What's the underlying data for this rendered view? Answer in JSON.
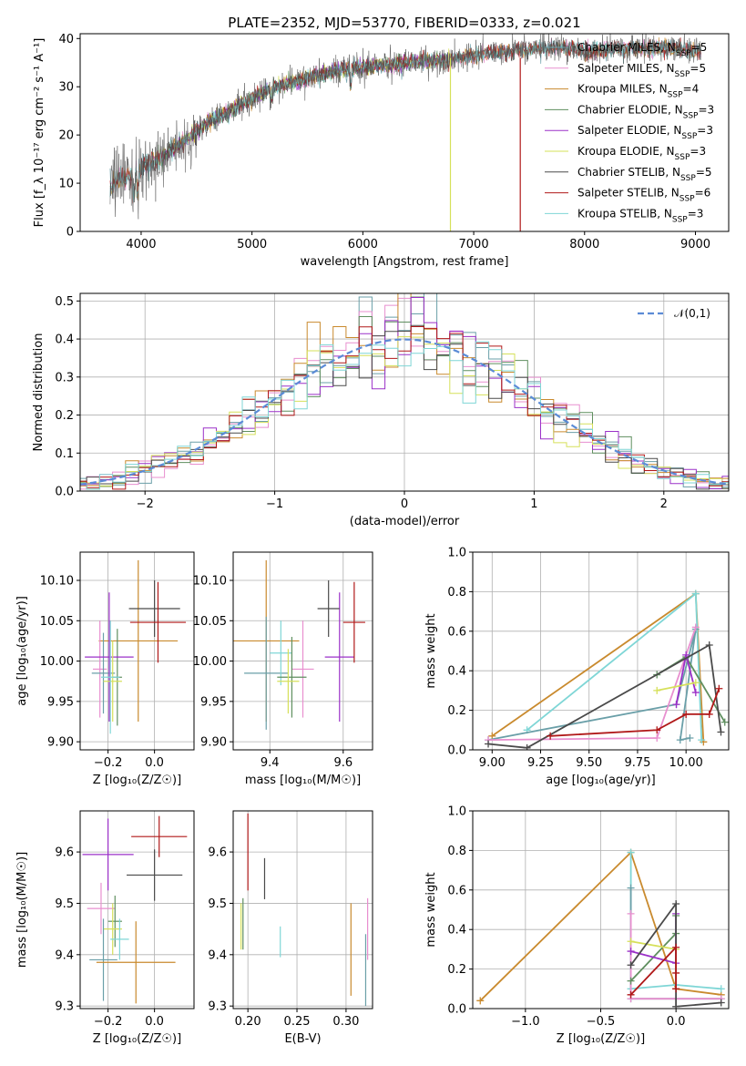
{
  "figure": {
    "title": "PLATE=2352, MJD=53770, FIBERID=0333, z=0.021"
  },
  "models": [
    {
      "name": "Chabrier MILES",
      "nssp": "5",
      "color": "#6a9fa8"
    },
    {
      "name": "Salpeter MILES",
      "nssp": "5",
      "color": "#e88fcf"
    },
    {
      "name": "Kroupa MILES",
      "nssp": "4",
      "color": "#c98a2e"
    },
    {
      "name": "Chabrier ELODIE",
      "nssp": "3",
      "color": "#5f8f5f"
    },
    {
      "name": "Salpeter ELODIE",
      "nssp": "3",
      "color": "#9b30c8"
    },
    {
      "name": "Kroupa ELODIE",
      "nssp": "3",
      "color": "#d6e05a"
    },
    {
      "name": "Chabrier STELIB",
      "nssp": "5",
      "color": "#4a4a4a"
    },
    {
      "name": "Salpeter STELIB",
      "nssp": "6",
      "color": "#b01818"
    },
    {
      "name": "Kroupa STELIB",
      "nssp": "3",
      "color": "#7fd6d6"
    }
  ],
  "chart_data": [
    {
      "id": "spectrum",
      "type": "line",
      "xlabel": "wavelength [Angstrom, rest frame]",
      "ylabel": "Flux [f_λ 10⁻¹⁷ erg cm⁻² s⁻¹ A⁻¹]",
      "xlim": [
        3450,
        9300
      ],
      "ylim": [
        0,
        41
      ],
      "xticks": [
        4000,
        5000,
        6000,
        7000,
        8000,
        9000
      ],
      "yticks": [
        0,
        10,
        20,
        30,
        40
      ],
      "continuum": [
        [
          3720,
          9
        ],
        [
          3800,
          11
        ],
        [
          3900,
          11.5
        ],
        [
          4000,
          13
        ],
        [
          4200,
          15.5
        ],
        [
          4400,
          19
        ],
        [
          4600,
          22.5
        ],
        [
          4800,
          25
        ],
        [
          5000,
          27.5
        ],
        [
          5200,
          30
        ],
        [
          5400,
          31
        ],
        [
          5600,
          32.5
        ],
        [
          5800,
          33.5
        ],
        [
          6000,
          34
        ],
        [
          6200,
          34.5
        ],
        [
          6400,
          35
        ],
        [
          6600,
          35.5
        ],
        [
          6800,
          35.5
        ],
        [
          7000,
          36.5
        ],
        [
          7200,
          37
        ],
        [
          7400,
          37.5
        ],
        [
          7600,
          38
        ],
        [
          7800,
          38
        ],
        [
          8000,
          37.5
        ],
        [
          8200,
          37.8
        ],
        [
          8400,
          38
        ],
        [
          8600,
          38
        ],
        [
          8800,
          38
        ],
        [
          9000,
          37.5
        ],
        [
          9050,
          37.5
        ]
      ],
      "dropouts": [
        {
          "x": 6790,
          "model": "Kroupa ELODIE"
        },
        {
          "x": 7420,
          "model": "Salpeter STELIB"
        }
      ],
      "legend": "upper-right",
      "grid": false
    },
    {
      "id": "residuals",
      "type": "bar",
      "xlabel": "(data-model)/error",
      "ylabel": "Normed distribution",
      "xlim": [
        -2.5,
        2.5
      ],
      "ylim": [
        0,
        0.52
      ],
      "xticks": [
        -2,
        -1,
        0,
        1,
        2
      ],
      "yticks": [
        0.0,
        0.1,
        0.2,
        0.3,
        0.4,
        0.5
      ],
      "normal_curve": {
        "label": "𝒩(0,1)",
        "mean": 0,
        "sigma": 1,
        "color": "#5b8bd6"
      },
      "bin_width": 0.1,
      "legend": "upper-right",
      "grid": true
    },
    {
      "id": "z_vs_age",
      "type": "scatter",
      "xlabel": "Z [log₁₀(Z/Z☉)]",
      "ylabel": "age  [log₁₀(age/yr)]",
      "xlim": [
        -0.32,
        0.17
      ],
      "ylim": [
        9.89,
        10.135
      ],
      "xticks": [
        -0.2,
        0.0
      ],
      "yticks": [
        9.9,
        9.95,
        10.0,
        10.05,
        10.1
      ],
      "points": [
        {
          "model": "Kroupa MILES",
          "x": -0.07,
          "xerr": 0.17,
          "y": 10.025,
          "yerr": 0.1
        },
        {
          "model": "Salpeter MILES",
          "x": -0.235,
          "xerr": 0.03,
          "y": 9.99,
          "yerr": 0.06
        },
        {
          "model": "Chabrier MILES",
          "x": -0.22,
          "xerr": 0.05,
          "y": 9.985,
          "yerr": 0.05
        },
        {
          "model": "Chabrier ELODIE",
          "x": -0.16,
          "xerr": 0.02,
          "y": 9.98,
          "yerr": 0.06
        },
        {
          "model": "Salpeter ELODIE",
          "x": -0.195,
          "xerr": 0.105,
          "y": 10.005,
          "yerr": 0.08
        },
        {
          "model": "Kroupa ELODIE",
          "x": -0.18,
          "xerr": 0.04,
          "y": 9.975,
          "yerr": 0.05
        },
        {
          "model": "Kroupa STELIB",
          "x": -0.19,
          "xerr": 0.04,
          "y": 9.98,
          "yerr": 0.07
        },
        {
          "model": "Chabrier STELIB",
          "x": 0.0,
          "xerr": 0.11,
          "y": 10.065,
          "yerr": 0.035
        },
        {
          "model": "Salpeter STELIB",
          "x": 0.015,
          "xerr": 0.12,
          "y": 10.048,
          "yerr": 0.05
        }
      ]
    },
    {
      "id": "mass_vs_age",
      "type": "scatter",
      "xlabel": "mass [log₁₀(M/M☉)]",
      "ylabel": "",
      "xlim": [
        9.3,
        9.68
      ],
      "ylim": [
        9.89,
        10.135
      ],
      "xticks": [
        9.4,
        9.6
      ],
      "yticks": [
        9.9,
        9.95,
        10.0,
        10.05,
        10.1
      ],
      "points": [
        {
          "model": "Kroupa MILES",
          "x": 9.39,
          "xerr": 0.09,
          "y": 10.025,
          "yerr": 0.1
        },
        {
          "model": "Chabrier MILES",
          "x": 9.39,
          "xerr": 0.06,
          "y": 9.985,
          "yerr": 0.07
        },
        {
          "model": "Salpeter MILES",
          "x": 9.49,
          "xerr": 0.03,
          "y": 9.99,
          "yerr": 0.06
        },
        {
          "model": "Kroupa STELIB",
          "x": 9.43,
          "xerr": 0.03,
          "y": 10.01,
          "yerr": 0.04
        },
        {
          "model": "Chabrier ELODIE",
          "x": 9.46,
          "xerr": 0.04,
          "y": 9.98,
          "yerr": 0.05
        },
        {
          "model": "Kroupa ELODIE",
          "x": 9.45,
          "xerr": 0.03,
          "y": 9.975,
          "yerr": 0.04
        },
        {
          "model": "Salpeter ELODIE",
          "x": 9.59,
          "xerr": 0.04,
          "y": 10.005,
          "yerr": 0.08
        },
        {
          "model": "Chabrier STELIB",
          "x": 9.56,
          "xerr": 0.03,
          "y": 10.065,
          "yerr": 0.035
        },
        {
          "model": "Salpeter STELIB",
          "x": 9.63,
          "xerr": 0.03,
          "y": 10.048,
          "yerr": 0.05
        }
      ]
    },
    {
      "id": "weight_vs_age",
      "type": "line",
      "xlabel": "age  [log₁₀(age/yr)]",
      "ylabel": "mass weight",
      "xlim": [
        8.9,
        10.22
      ],
      "ylim": [
        0,
        1.0
      ],
      "xticks": [
        9.0,
        9.25,
        9.5,
        9.75,
        10.0
      ],
      "yticks": [
        0.0,
        0.2,
        0.4,
        0.6,
        0.8,
        1.0
      ],
      "series": [
        {
          "model": "Kroupa MILES",
          "x": [
            9.0,
            10.05,
            10.09
          ],
          "y": [
            0.07,
            0.79,
            0.04
          ]
        },
        {
          "model": "Kroupa STELIB",
          "x": [
            9.18,
            10.05,
            10.08
          ],
          "y": [
            0.1,
            0.79,
            0.05
          ]
        },
        {
          "model": "Chabrier MILES",
          "x": [
            8.98,
            9.95,
            10.05,
            9.97,
            10.02
          ],
          "y": [
            0.05,
            0.23,
            0.61,
            0.05,
            0.06
          ]
        },
        {
          "model": "Salpeter MILES",
          "x": [
            8.98,
            9.85,
            10.05
          ],
          "y": [
            0.05,
            0.06,
            0.62
          ]
        },
        {
          "model": "Chabrier ELODIE",
          "x": [
            9.85,
            10.0,
            10.2
          ],
          "y": [
            0.38,
            0.47,
            0.14
          ]
        },
        {
          "model": "Salpeter ELODIE",
          "x": [
            9.95,
            10.0,
            10.05
          ],
          "y": [
            0.23,
            0.48,
            0.29
          ]
        },
        {
          "model": "Kroupa ELODIE",
          "x": [
            9.85,
            10.05
          ],
          "y": [
            0.3,
            0.34
          ]
        },
        {
          "model": "Chabrier STELIB",
          "x": [
            8.98,
            9.18,
            10.12,
            10.18
          ],
          "y": [
            0.03,
            0.01,
            0.53,
            0.09
          ]
        },
        {
          "model": "Salpeter STELIB",
          "x": [
            9.3,
            9.85,
            10.0,
            10.12,
            10.17
          ],
          "y": [
            0.07,
            0.1,
            0.18,
            0.18,
            0.31
          ]
        }
      ]
    },
    {
      "id": "z_vs_mass",
      "type": "scatter",
      "xlabel": "Z [log₁₀(Z/Z☉)]",
      "ylabel": "mass [log₁₀(M/M☉)]",
      "xlim": [
        -0.32,
        0.17
      ],
      "ylim": [
        9.295,
        9.68
      ],
      "xticks": [
        -0.2,
        0.0
      ],
      "yticks": [
        9.3,
        9.4,
        9.5,
        9.6
      ],
      "points": [
        {
          "model": "Salpeter STELIB",
          "x": 0.02,
          "xerr": 0.12,
          "y": 9.63,
          "yerr": 0.04
        },
        {
          "model": "Salpeter ELODIE",
          "x": -0.2,
          "xerr": 0.11,
          "y": 9.595,
          "yerr": 0.07
        },
        {
          "model": "Chabrier STELIB",
          "x": 0.0,
          "xerr": 0.12,
          "y": 9.555,
          "yerr": 0.05
        },
        {
          "model": "Salpeter MILES",
          "x": -0.23,
          "xerr": 0.06,
          "y": 9.49,
          "yerr": 0.05
        },
        {
          "model": "Chabrier ELODIE",
          "x": -0.17,
          "xerr": 0.03,
          "y": 9.465,
          "yerr": 0.05
        },
        {
          "model": "Kroupa ELODIE",
          "x": -0.18,
          "xerr": 0.04,
          "y": 9.45,
          "yerr": 0.05
        },
        {
          "model": "Kroupa STELIB",
          "x": -0.15,
          "xerr": 0.04,
          "y": 9.43,
          "yerr": 0.04
        },
        {
          "model": "Chabrier MILES",
          "x": -0.22,
          "xerr": 0.06,
          "y": 9.39,
          "yerr": 0.08
        },
        {
          "model": "Kroupa MILES",
          "x": -0.08,
          "xerr": 0.17,
          "y": 9.385,
          "yerr": 0.08
        }
      ]
    },
    {
      "id": "ebv_vs_mass",
      "type": "scatter",
      "xlabel": "E(B-V)",
      "ylabel": "",
      "xlim": [
        0.185,
        0.327
      ],
      "ylim": [
        9.295,
        9.68
      ],
      "xticks": [
        0.2,
        0.25,
        0.3
      ],
      "yticks": [
        9.3,
        9.4,
        9.5,
        9.6
      ],
      "points": [
        {
          "model": "Salpeter STELIB",
          "x": 0.2,
          "y": 9.6,
          "yerr": 0.075
        },
        {
          "model": "Chabrier STELIB",
          "x": 0.217,
          "y": 9.548,
          "yerr": 0.04
        },
        {
          "model": "Kroupa ELODIE",
          "x": 0.193,
          "y": 9.455,
          "yerr": 0.045
        },
        {
          "model": "Chabrier ELODIE",
          "x": 0.195,
          "y": 9.46,
          "yerr": 0.05
        },
        {
          "model": "Kroupa STELIB",
          "x": 0.233,
          "y": 9.425,
          "yerr": 0.03
        },
        {
          "model": "Kroupa MILES",
          "x": 0.305,
          "y": 9.41,
          "yerr": 0.09
        },
        {
          "model": "Salpeter MILES",
          "x": 0.322,
          "y": 9.45,
          "yerr": 0.06
        },
        {
          "model": "Chabrier MILES",
          "x": 0.32,
          "y": 9.37,
          "yerr": 0.07
        }
      ]
    },
    {
      "id": "weight_vs_z",
      "type": "line",
      "xlabel": "Z [log₁₀(Z/Z☉)]",
      "ylabel": "mass weight",
      "xlim": [
        -1.35,
        0.35
      ],
      "ylim": [
        0,
        1.0
      ],
      "xticks": [
        -1.0,
        -0.5,
        0.0
      ],
      "yticks": [
        0.0,
        0.2,
        0.4,
        0.6,
        0.8,
        1.0
      ],
      "series": [
        {
          "model": "Kroupa MILES",
          "x": [
            -1.3,
            -0.3,
            0.0,
            0.3
          ],
          "y": [
            0.04,
            0.79,
            0.1,
            0.07
          ]
        },
        {
          "model": "Kroupa STELIB",
          "x": [
            -0.3,
            -0.3,
            0.0,
            0.3
          ],
          "y": [
            0.79,
            0.1,
            0.12,
            0.1
          ]
        },
        {
          "model": "Chabrier MILES",
          "x": [
            -0.3,
            -0.3,
            0.0,
            0.3
          ],
          "y": [
            0.61,
            0.05,
            0.05,
            0.05
          ]
        },
        {
          "model": "Salpeter MILES",
          "x": [
            -0.3,
            -0.3,
            0.0,
            0.3
          ],
          "y": [
            0.48,
            0.05,
            0.05,
            0.05
          ]
        },
        {
          "model": "Chabrier ELODIE",
          "x": [
            -0.3,
            0.0,
            0.0
          ],
          "y": [
            0.14,
            0.38,
            0.47
          ]
        },
        {
          "model": "Salpeter ELODIE",
          "x": [
            -0.3,
            0.0,
            0.0
          ],
          "y": [
            0.29,
            0.23,
            0.48
          ]
        },
        {
          "model": "Kroupa ELODIE",
          "x": [
            -0.3,
            0.0
          ],
          "y": [
            0.34,
            0.3
          ]
        },
        {
          "model": "Chabrier STELIB",
          "x": [
            -0.3,
            0.0,
            0.0,
            0.3
          ],
          "y": [
            0.22,
            0.53,
            0.01,
            0.03
          ]
        },
        {
          "model": "Salpeter STELIB",
          "x": [
            -0.3,
            0.0,
            0.0,
            0.0
          ],
          "y": [
            0.07,
            0.31,
            0.18,
            0.1
          ]
        }
      ]
    }
  ]
}
